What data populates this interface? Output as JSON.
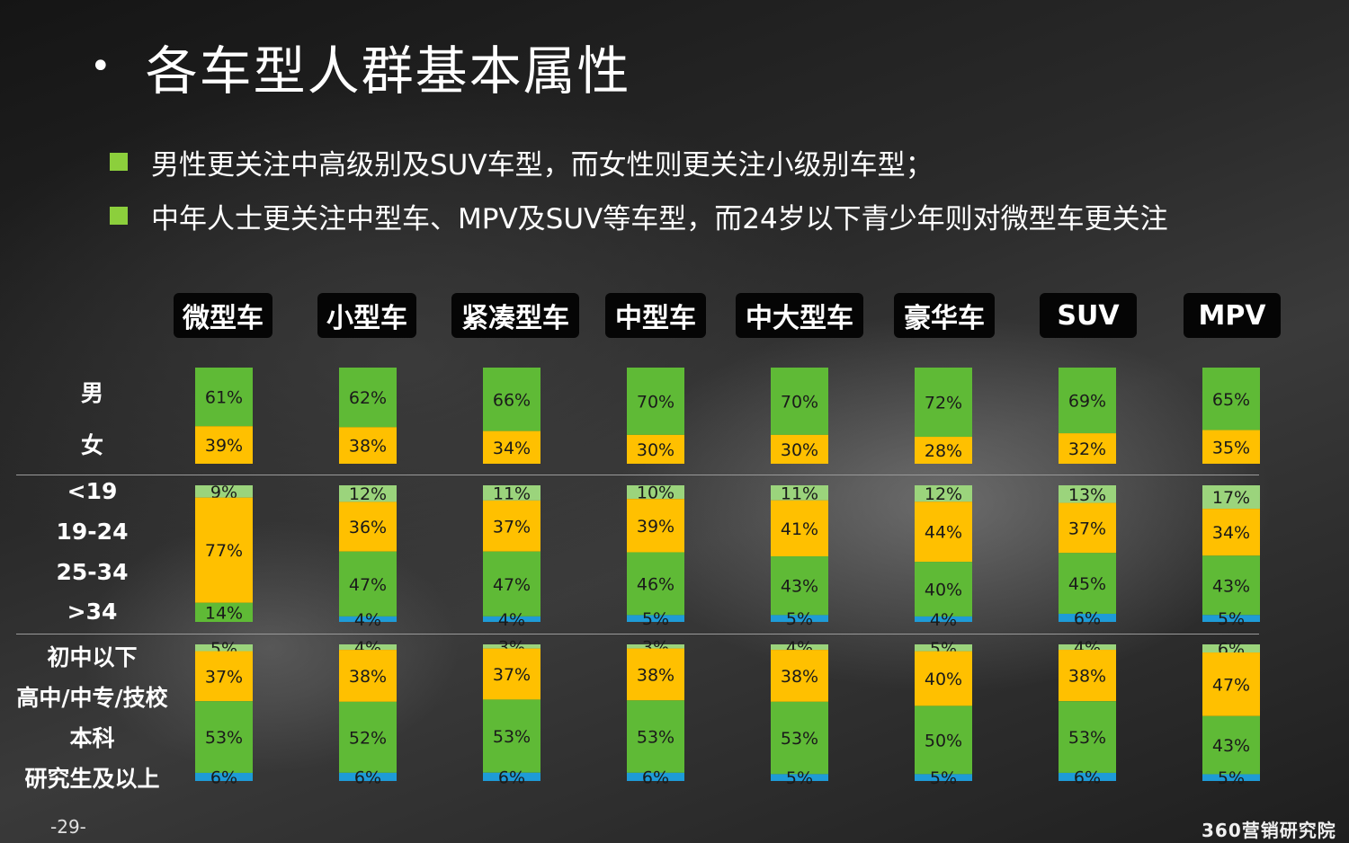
{
  "title": "各车型人群基本属性",
  "bullets": [
    "男性更关注中高级别及SUV车型，而女性则更关注小级别车型；",
    "中年人士更关注中型车、MPV及SUV等车型，而24岁以下青少年则对微型车更关注"
  ],
  "row_labels": {
    "gender": [
      "男",
      "女"
    ],
    "age": [
      "<19",
      "19-24",
      "25-34",
      ">34"
    ],
    "education": [
      "初中以下",
      "高中/中专/技校",
      "本科",
      "研究生及以上"
    ]
  },
  "footer": {
    "page": "-29-",
    "logo": "360营销研究院"
  },
  "colors": {
    "green": "#5fba36",
    "yellow": "#ffc000",
    "light_green": "#9bd47c",
    "blue": "#1e9bd7"
  },
  "chart_data": [
    {
      "type": "bar",
      "stacked": true,
      "name_hint": "gender",
      "categories": [
        "微型车",
        "小型车",
        "紧凑型车",
        "中型车",
        "中大型车",
        "豪华车",
        "SUV",
        "MPV"
      ],
      "series": [
        {
          "name": "男",
          "color": "#5fba36",
          "values": [
            61,
            62,
            66,
            70,
            70,
            72,
            69,
            65
          ]
        },
        {
          "name": "女",
          "color": "#ffc000",
          "values": [
            39,
            38,
            34,
            30,
            30,
            28,
            32,
            35
          ]
        }
      ],
      "unit": "%"
    },
    {
      "type": "bar",
      "stacked": true,
      "name_hint": "age",
      "categories": [
        "微型车",
        "小型车",
        "紧凑型车",
        "中型车",
        "中大型车",
        "豪华车",
        "SUV",
        "MPV"
      ],
      "series": [
        {
          "name": "<19",
          "color": "#9bd47c",
          "values": [
            9,
            12,
            11,
            10,
            11,
            12,
            13,
            17
          ]
        },
        {
          "name": "19-24",
          "color": "#ffc000",
          "values": [
            77,
            36,
            37,
            39,
            41,
            44,
            37,
            34
          ]
        },
        {
          "name": "25-34",
          "color": "#5fba36",
          "values": [
            14,
            47,
            47,
            46,
            43,
            40,
            45,
            43
          ]
        },
        {
          "name": ">34",
          "color": "#1e9bd7",
          "values": [
            0,
            4,
            4,
            5,
            5,
            4,
            6,
            5
          ]
        }
      ],
      "unit": "%"
    },
    {
      "type": "bar",
      "stacked": true,
      "name_hint": "education",
      "categories": [
        "微型车",
        "小型车",
        "紧凑型车",
        "中型车",
        "中大型车",
        "豪华车",
        "SUV",
        "MPV"
      ],
      "series": [
        {
          "name": "初中以下",
          "color": "#9bd47c",
          "values": [
            5,
            4,
            3,
            3,
            4,
            5,
            4,
            6
          ]
        },
        {
          "name": "高中/中专/技校",
          "color": "#ffc000",
          "values": [
            37,
            38,
            37,
            38,
            38,
            40,
            38,
            47
          ]
        },
        {
          "name": "本科",
          "color": "#5fba36",
          "values": [
            53,
            52,
            53,
            53,
            53,
            50,
            53,
            43
          ]
        },
        {
          "name": "研究生及以上",
          "color": "#1e9bd7",
          "values": [
            6,
            6,
            6,
            6,
            5,
            5,
            6,
            5
          ]
        }
      ],
      "unit": "%"
    }
  ]
}
